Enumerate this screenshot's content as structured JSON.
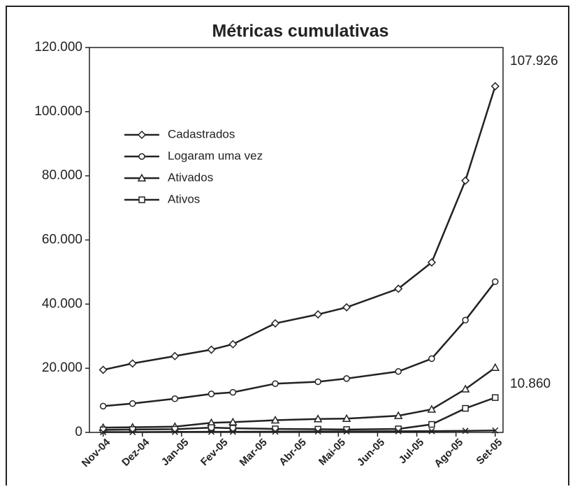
{
  "chart_data": {
    "type": "line",
    "title": "Métricas cumulativas",
    "x": [
      0,
      0.75,
      1.83,
      2.76,
      3.31,
      4.39,
      5.48,
      6.21,
      7.53,
      8.38,
      9.24,
      10
    ],
    "xlim": [
      -0.35,
      10.2
    ],
    "xticks": [
      {
        "value": 0,
        "label": "Nov-04"
      },
      {
        "value": 1,
        "label": "Dez-04"
      },
      {
        "value": 2,
        "label": "Jan-05"
      },
      {
        "value": 3,
        "label": "Fev-05"
      },
      {
        "value": 4,
        "label": "Mar-05"
      },
      {
        "value": 5,
        "label": "Abr-05"
      },
      {
        "value": 6,
        "label": "Mai-05"
      },
      {
        "value": 7,
        "label": "Jun-05"
      },
      {
        "value": 8,
        "label": "Jul-05"
      },
      {
        "value": 9,
        "label": "Ago-05"
      },
      {
        "value": 10,
        "label": "Set-05"
      }
    ],
    "ylim": [
      0,
      120000
    ],
    "yticks": [
      0,
      {
        "value": 20000,
        "label": "20.000"
      },
      {
        "value": 40000,
        "label": "40.000"
      },
      {
        "value": 60000,
        "label": "60.000"
      },
      {
        "value": 80000,
        "label": "80.000"
      },
      {
        "value": 100000,
        "label": "100.000"
      },
      {
        "value": 120000,
        "label": "120.000"
      }
    ],
    "legend": "upper left",
    "series": [
      {
        "name": "Cadastrados",
        "color": "#222222",
        "marker": "diamond",
        "values": [
          19500,
          21500,
          23800,
          25800,
          27500,
          34000,
          36800,
          39000,
          44800,
          53000,
          78500,
          107926
        ]
      },
      {
        "name": "Logaram uma vez",
        "color": "#222222",
        "marker": "circle",
        "values": [
          8200,
          9000,
          10500,
          12000,
          12500,
          15200,
          15800,
          16800,
          19000,
          23000,
          35000,
          47000
        ]
      },
      {
        "name": "Ativados",
        "color": "#222222",
        "marker": "triangle",
        "values": [
          1500,
          1600,
          1800,
          3000,
          3200,
          3800,
          4200,
          4300,
          5200,
          7200,
          13500,
          20200
        ]
      },
      {
        "name": "Ativos",
        "color": "#222222",
        "marker": "square",
        "values": [
          800,
          900,
          1000,
          1500,
          1300,
          1100,
          1000,
          900,
          1100,
          2500,
          7500,
          10860
        ]
      },
      {
        "color": "#222222",
        "marker": "x",
        "values": [
          100,
          100,
          150,
          200,
          200,
          250,
          300,
          300,
          350,
          400,
          500,
          600
        ]
      }
    ],
    "annotations": [
      "107.926",
      "10.860"
    ]
  }
}
